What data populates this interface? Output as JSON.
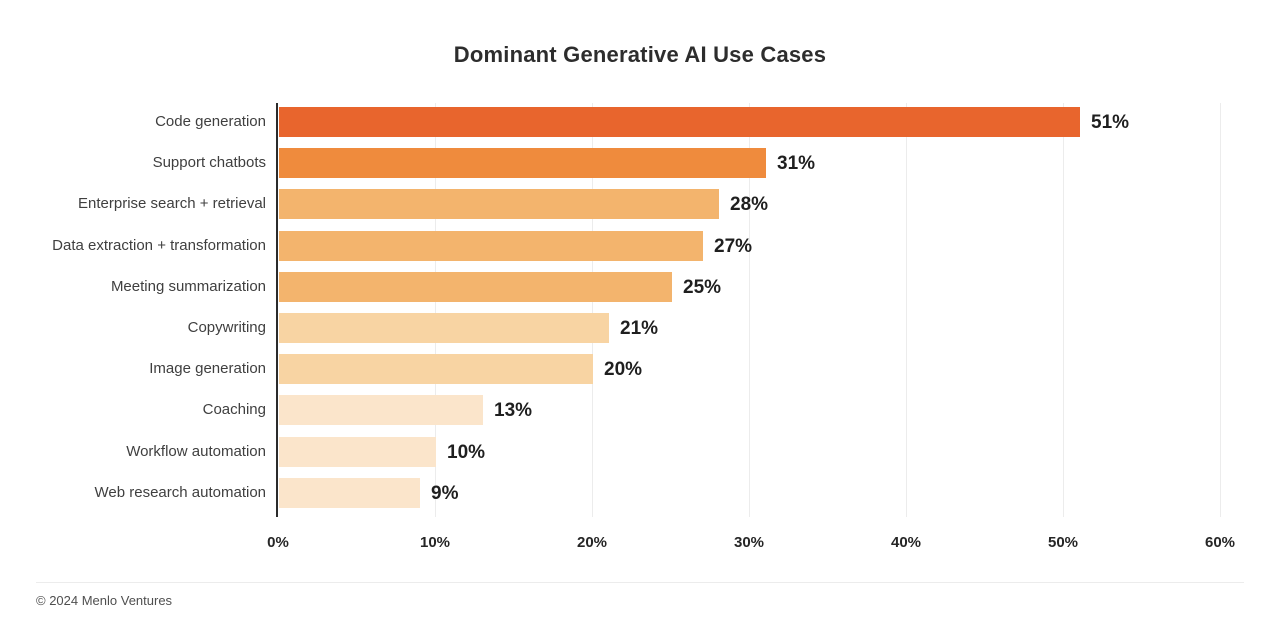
{
  "title": "Dominant Generative AI Use Cases",
  "footer": {
    "copyright": "© 2024 Menlo Ventures"
  },
  "chart_data": {
    "type": "bar",
    "orientation": "horizontal",
    "title": "Dominant Generative AI Use Cases",
    "categories": [
      "Code generation",
      "Support chatbots",
      "Enterprise search + retrieval",
      "Data extraction + transformation",
      "Meeting summarization",
      "Copywriting",
      "Image generation",
      "Coaching",
      "Workflow automation",
      "Web research automation"
    ],
    "values": [
      51,
      31,
      28,
      27,
      25,
      21,
      20,
      13,
      10,
      9
    ],
    "value_labels": [
      "51%",
      "31%",
      "28%",
      "27%",
      "25%",
      "21%",
      "20%",
      "13%",
      "10%",
      "9%"
    ],
    "bar_colors": [
      "#E8652D",
      "#EF8B3D",
      "#F3B46D",
      "#F3B46D",
      "#F3B46D",
      "#F8D4A3",
      "#F8D4A3",
      "#FBE5CB",
      "#FBE5CB",
      "#FBE5CB"
    ],
    "xlabel": "",
    "ylabel": "",
    "x_ticks": [
      "0%",
      "10%",
      "20%",
      "30%",
      "40%",
      "50%",
      "60%"
    ],
    "xlim": [
      0,
      60
    ],
    "grid": "vertical-light",
    "legend": "none",
    "colors": {
      "axis_line": "#2b2b2b",
      "gridline": "#ececec",
      "title_text": "#2d2d2d",
      "category_text": "#3f3f3f",
      "value_text": "#1f1f1f",
      "tick_text": "#262626",
      "footer_text": "#4f4f4f",
      "background": "#ffffff"
    }
  }
}
